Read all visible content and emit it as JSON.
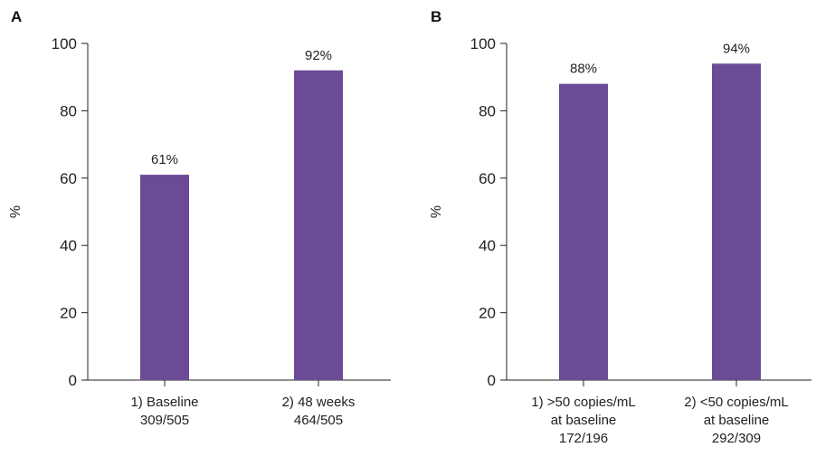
{
  "chart_data": [
    {
      "type": "bar",
      "panel": "A",
      "ylabel": "%",
      "ylim": [
        0,
        100
      ],
      "yticks": [
        "0",
        "20",
        "40",
        "60",
        "80",
        "100"
      ],
      "categories": [
        [
          "1) Baseline",
          "309/505"
        ],
        [
          "2) 48 weeks",
          "464/505"
        ]
      ],
      "values": [
        61,
        92
      ],
      "data_labels": [
        "61%",
        "92%"
      ],
      "bar_color": "#6b4a96",
      "grid": false
    },
    {
      "type": "bar",
      "panel": "B",
      "ylabel": "%",
      "ylim": [
        0,
        100
      ],
      "yticks": [
        "0",
        "20",
        "40",
        "60",
        "80",
        "100"
      ],
      "categories": [
        [
          "1) >50 copies/mL",
          "at baseline",
          "172/196"
        ],
        [
          "2) <50 copies/mL",
          "at baseline",
          "292/309"
        ]
      ],
      "values": [
        88,
        94
      ],
      "data_labels": [
        "88%",
        "94%"
      ],
      "bar_color": "#6b4a96",
      "grid": false
    }
  ]
}
